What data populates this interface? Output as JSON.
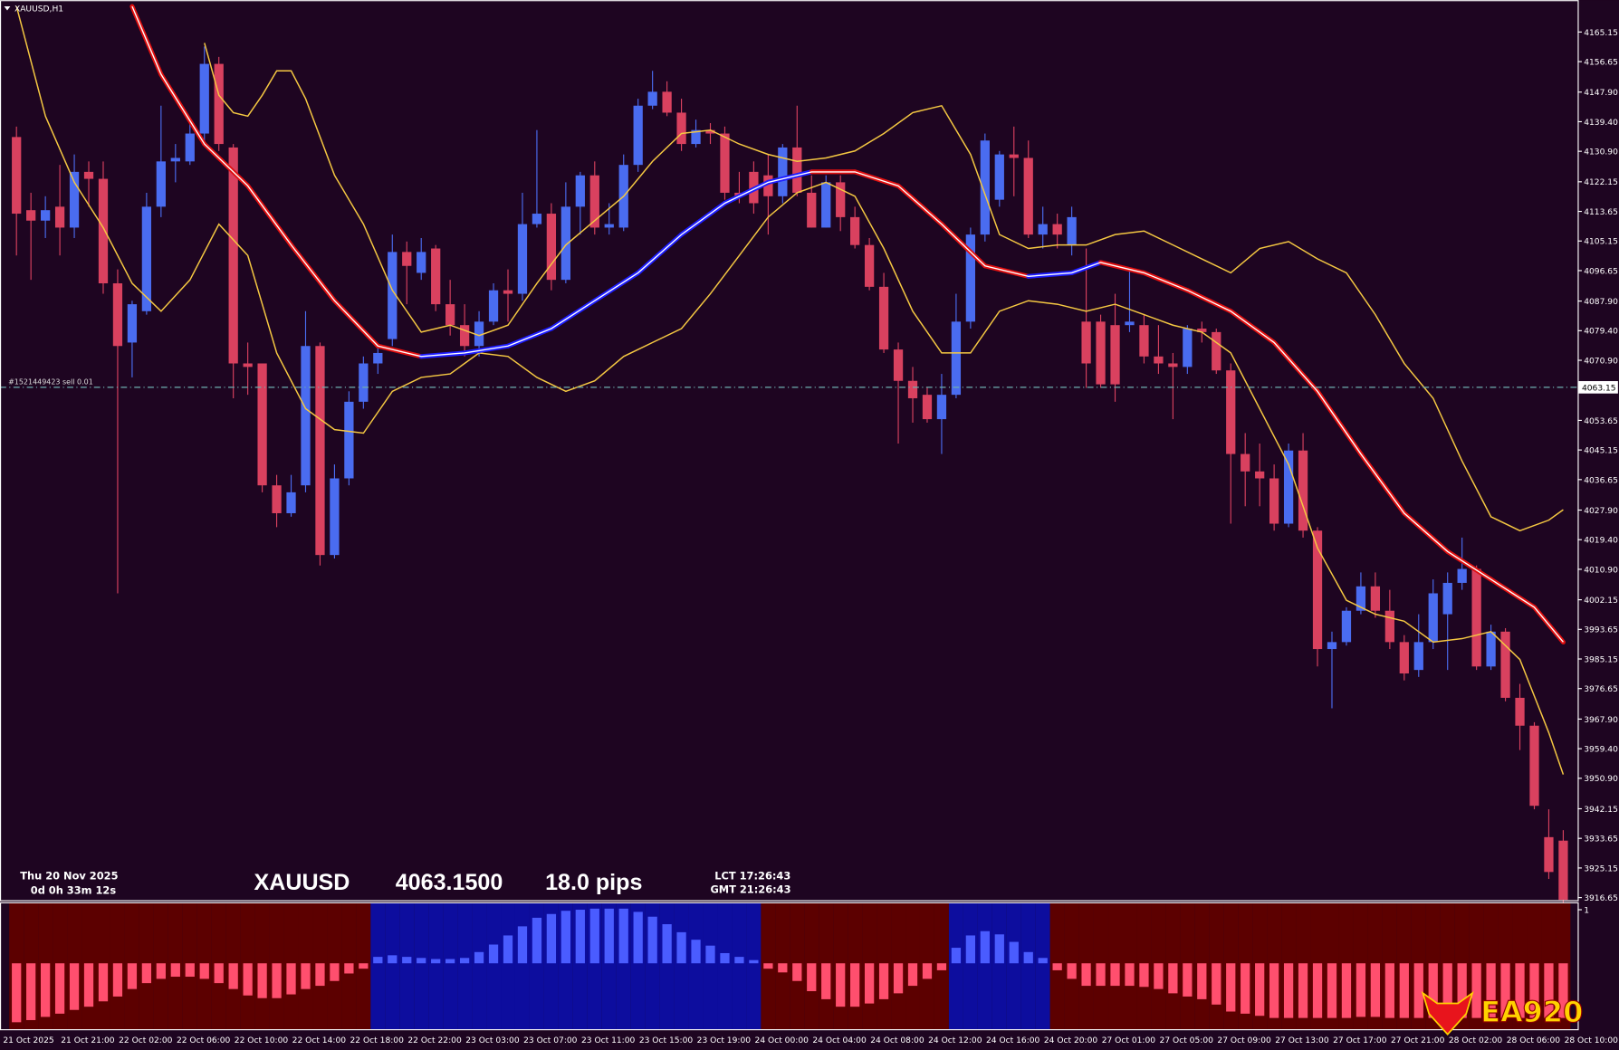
{
  "header": {
    "title": "XAUUSD,H1"
  },
  "info": {
    "date": "Thu 20 Nov 2025",
    "countdown": "0d 0h 33m 12s",
    "symbol": "XAUUSD",
    "price": "4063.1500",
    "spread": "18.0 pips",
    "lct": "LCT 17:26:43",
    "gmt": "GMT 21:26:43"
  },
  "order_label": "#1521449423 sell 0.01",
  "logo": {
    "text": "EA920"
  },
  "chart_data": [
    {
      "type": "candlestick",
      "up_color": "#4a6cf0",
      "down_color": "#d9415f",
      "xlim": [
        -1.14,
        108
      ],
      "ylim": [
        3915.9,
        4174.3
      ],
      "yticks": [
        4165.15,
        4156.65,
        {
          "value": 4147.9,
          "label": "4147.90"
        },
        {
          "value": 4139.4,
          "label": "4139.40"
        },
        {
          "value": 4130.9,
          "label": "4130.90"
        },
        4122.15,
        4113.65,
        4105.15,
        4096.65,
        {
          "value": 4087.9,
          "label": "4087.90"
        },
        {
          "value": 4079.4,
          "label": "4079.40"
        },
        {
          "value": 4070.9,
          "label": "4070.90"
        },
        4053.65,
        4045.15,
        4036.65,
        {
          "value": 4027.9,
          "label": "4027.90"
        },
        {
          "value": 4019.4,
          "label": "4019.40"
        },
        {
          "value": 4010.9,
          "label": "4010.90"
        },
        4002.15,
        3993.65,
        3985.15,
        3976.65,
        {
          "value": 3967.9,
          "label": "3967.90"
        },
        {
          "value": 3959.4,
          "label": "3959.40"
        },
        {
          "value": 3950.9,
          "label": "3950.90"
        },
        3942.15,
        3933.65,
        3925.15,
        3916.65
      ],
      "current_price": 4063.15,
      "x_labels": [
        "21 Oct 2025",
        "21 Oct 21:00",
        "22 Oct 02:00",
        "22 Oct 06:00",
        "22 Oct 10:00",
        "22 Oct 14:00",
        "22 Oct 18:00",
        "22 Oct 22:00",
        "23 Oct 03:00",
        "23 Oct 07:00",
        "23 Oct 11:00",
        "23 Oct 15:00",
        "23 Oct 19:00",
        "24 Oct 00:00",
        "24 Oct 04:00",
        "24 Oct 08:00",
        "24 Oct 12:00",
        "24 Oct 16:00",
        "24 Oct 20:00",
        "27 Oct 01:00",
        "27 Oct 05:00",
        "27 Oct 09:00",
        "27 Oct 13:00",
        "27 Oct 17:00",
        "27 Oct 21:00",
        "28 Oct 02:00",
        "28 Oct 06:00",
        "28 Oct 10:00"
      ],
      "open": [
        4135,
        4114,
        4111,
        4115,
        4109,
        4125,
        4123,
        4093,
        4076,
        4085,
        4115,
        4128,
        4128,
        4136,
        4156,
        4132,
        4070,
        4070,
        4035,
        4027,
        4035,
        4075,
        4015,
        4037,
        4059,
        4070,
        4077,
        4102,
        4096,
        4103,
        4087,
        4081,
        4075,
        4082,
        4091,
        4090,
        4110,
        4113,
        4094,
        4115,
        4124,
        4109,
        4109,
        4127,
        4144,
        4148,
        4142,
        4133,
        4137,
        4136,
        4119,
        4125,
        4124,
        4118,
        4132,
        4119,
        4109,
        4122,
        4112,
        4104,
        4092,
        4074,
        4065,
        4061,
        4054,
        4061,
        4082,
        4107,
        4117,
        4130,
        4129,
        4107,
        4110,
        4104,
        4082,
        4082,
        4081,
        4081,
        4081,
        4072,
        4070,
        4069,
        4080,
        4079,
        4068,
        4044,
        4039,
        4037,
        4024,
        4045,
        4022,
        3988,
        3990,
        3999,
        4006,
        3999,
        3990,
        3982,
        3990,
        3998,
        4007,
        4011,
        3983,
        3993,
        3974,
        3966,
        3934,
        3933
      ],
      "high": [
        4138,
        4119,
        4118,
        4127,
        4130,
        4128,
        4128,
        4097,
        4088,
        4119,
        4144,
        4133,
        4140,
        4161,
        4158,
        4133,
        4076,
        4070,
        4038,
        4038,
        4085,
        4076,
        4041,
        4062,
        4072,
        4075,
        4107,
        4105,
        4106,
        4104,
        4094,
        4087,
        4085,
        4093,
        4097,
        4119,
        4137,
        4116,
        4122,
        4125,
        4128,
        4116,
        4130,
        4146,
        4154,
        4151,
        4146,
        4140,
        4139,
        4138,
        4125,
        4128,
        4130,
        4133,
        4144,
        4124,
        4124,
        4124,
        4115,
        4106,
        4096,
        4076,
        4069,
        4063,
        4067,
        4090,
        4109,
        4136,
        4131,
        4138,
        4134,
        4115,
        4113,
        4115,
        4103,
        4084,
        4090,
        4097,
        4084,
        4081,
        4073,
        4081,
        4082,
        4080,
        4070,
        4050,
        4047,
        4041,
        4047,
        4050,
        4023,
        3993,
        4000,
        4010,
        4010,
        4005,
        3992,
        3998,
        4008,
        4010,
        4020,
        4012,
        3995,
        3994,
        3978,
        3967,
        3942,
        3936
      ],
      "low": [
        4101,
        4094,
        4106,
        4101,
        4106,
        4115,
        4090,
        4004,
        4066,
        4084,
        4112,
        4122,
        4127,
        4134,
        4131,
        4060,
        4061,
        4033,
        4023,
        4026,
        4033,
        4012,
        4014,
        4035,
        4057,
        4067,
        4075,
        4087,
        4094,
        4085,
        4078,
        4072,
        4072,
        4081,
        4082,
        4088,
        4109,
        4091,
        4093,
        4107,
        4107,
        4107,
        4108,
        4125,
        4143,
        4141,
        4131,
        4132,
        4133,
        4117,
        4116,
        4113,
        4107,
        4116,
        4118,
        4109,
        4109,
        4108,
        4103,
        4091,
        4073,
        4047,
        4053,
        4053,
        4044,
        4060,
        4080,
        4105,
        4115,
        4118,
        4106,
        4103,
        4103,
        4101,
        4063,
        4063,
        4059,
        4079,
        4070,
        4067,
        4054,
        4067,
        4076,
        4067,
        4024,
        4029,
        4029,
        4022,
        4023,
        4020,
        3983,
        3971,
        3989,
        3998,
        3997,
        3988,
        3979,
        3980,
        3988,
        3982,
        4005,
        3982,
        3982,
        3973,
        3959,
        3942,
        3922,
        3915
      ],
      "close": [
        4113,
        4111,
        4114,
        4109,
        4125,
        4123,
        4093,
        4075,
        4087,
        4115,
        4128,
        4129,
        4136,
        4156,
        4133,
        4070,
        4069,
        4035,
        4027,
        4033,
        4075,
        4015,
        4037,
        4059,
        4070,
        4073,
        4102,
        4098,
        4102,
        4087,
        4081,
        4075,
        4082,
        4091,
        4090,
        4110,
        4113,
        4094,
        4115,
        4124,
        4109,
        4110,
        4127,
        4144,
        4148,
        4142,
        4133,
        4137,
        4136,
        4119,
        4118,
        4116,
        4118,
        4132,
        4119,
        4109,
        4122,
        4112,
        4104,
        4092,
        4074,
        4065,
        4060,
        4054,
        4061,
        4082,
        4107,
        4134,
        4130,
        4129,
        4107,
        4110,
        4107,
        4112,
        4070,
        4064,
        4064,
        4082,
        4072,
        4070,
        4069,
        4080,
        4079,
        4068,
        4044,
        4039,
        4037,
        4024,
        4045,
        4022,
        3988,
        3990,
        3999,
        4006,
        3999,
        3990,
        3981,
        3990,
        4004,
        4007,
        4011,
        3983,
        3993,
        3974,
        3966,
        3943,
        3924,
        3916
      ],
      "overlays": [
        {
          "type": "line",
          "color": "#f5c842",
          "x": [
            13,
            14,
            15,
            16,
            17,
            18,
            19,
            20,
            22,
            24,
            26,
            28,
            30,
            32,
            34,
            36,
            38,
            40,
            42,
            44,
            46,
            48,
            50,
            52,
            54,
            56,
            58,
            60,
            62,
            64,
            66,
            68,
            70,
            72,
            74,
            76,
            78,
            80,
            82,
            84,
            86,
            88,
            90,
            92,
            94,
            96,
            98,
            100,
            102,
            104,
            106,
            107
          ],
          "values": [
            4162,
            4147,
            4142,
            4141,
            4147,
            4154,
            4154,
            4146,
            4124,
            4110,
            4091,
            4079,
            4081,
            4078,
            4081,
            4093,
            4104,
            4111,
            4118,
            4128,
            4136,
            4137,
            4133,
            4130,
            4128,
            4129,
            4131,
            4136,
            4142,
            4144,
            4130,
            4107,
            4103,
            4104,
            4104,
            4107,
            4108,
            4104,
            4100,
            4096,
            4103,
            4105,
            4100,
            4096,
            4084,
            4070,
            4060,
            4042,
            4026,
            4022,
            4025,
            4028
          ]
        },
        {
          "type": "line",
          "color": "#f5c842",
          "x": [
            0,
            2,
            4,
            6,
            8,
            10,
            12,
            14,
            16,
            18,
            20,
            22,
            24,
            26,
            28,
            30,
            32,
            34,
            36,
            38,
            40,
            42,
            44,
            46,
            48,
            50,
            52,
            54,
            56,
            58,
            60,
            62,
            64,
            66,
            68,
            70,
            72,
            74,
            76,
            78,
            80,
            82,
            84,
            86,
            88,
            90,
            92,
            94,
            96,
            98,
            100,
            102,
            104,
            106,
            107
          ],
          "values": [
            4172.5,
            4141,
            4122,
            4109,
            4093,
            4085,
            4094,
            4110,
            4101,
            4073,
            4057,
            4051,
            4050,
            4062,
            4066,
            4067,
            4073,
            4072,
            4066,
            4062,
            4065,
            4072,
            4076,
            4080,
            4090,
            4101,
            4112,
            4119,
            4122,
            4118,
            4103,
            4085,
            4073,
            4073,
            4085,
            4088,
            4087,
            4085,
            4087,
            4084,
            4081,
            4079,
            4073,
            4057,
            4041,
            4017,
            4002,
            3998,
            3996,
            3990,
            3991,
            3993,
            3985,
            3964,
            3952
          ]
        },
        {
          "type": "trend-line",
          "up_color": "#1d1dff",
          "down_color": "#e01010",
          "x": [
            8,
            10,
            13,
            16,
            19,
            22,
            25,
            28,
            31,
            34,
            37,
            40,
            43,
            46,
            49,
            52,
            55,
            58,
            61,
            64,
            67,
            70,
            73,
            75,
            78,
            81,
            84,
            87,
            90,
            93,
            96,
            99,
            102,
            105,
            107
          ],
          "values": [
            4172.5,
            4153,
            4133,
            4121,
            4104,
            4088,
            4075,
            4072,
            4073,
            4075,
            4080,
            4088,
            4096,
            4107,
            4116,
            4122,
            4125,
            4125,
            4121,
            4110,
            4098,
            4095,
            4096,
            4099,
            4096,
            4091,
            4085,
            4076,
            4062,
            4044,
            4027,
            4016,
            4008,
            4000,
            3990
          ]
        }
      ]
    },
    {
      "type": "bar",
      "up_color": "#4a5cff",
      "down_color": "#ff4f6e",
      "up_background": "#0d0d9e",
      "down_background": "#5c0000",
      "xlim": [
        -1.14,
        108
      ],
      "ylim": [
        -1.23,
        1.12
      ],
      "yticks": [
        1
      ],
      "values": [
        -1.1,
        -1.06,
        -1.0,
        -0.94,
        -0.87,
        -0.81,
        -0.71,
        -0.62,
        -0.48,
        -0.37,
        -0.29,
        -0.25,
        -0.25,
        -0.29,
        -0.37,
        -0.48,
        -0.6,
        -0.65,
        -0.65,
        -0.58,
        -0.48,
        -0.42,
        -0.33,
        -0.19,
        -0.1,
        0.12,
        0.15,
        0.12,
        0.1,
        0.08,
        0.08,
        0.1,
        0.21,
        0.35,
        0.52,
        0.69,
        0.85,
        0.92,
        0.98,
        1.0,
        1.02,
        1.02,
        1.02,
        0.96,
        0.87,
        0.73,
        0.58,
        0.44,
        0.33,
        0.19,
        0.12,
        0.06,
        -0.1,
        -0.17,
        -0.33,
        -0.52,
        -0.67,
        -0.81,
        -0.81,
        -0.75,
        -0.67,
        -0.56,
        -0.42,
        -0.29,
        -0.13,
        0.29,
        0.52,
        0.6,
        0.54,
        0.4,
        0.21,
        0.1,
        -0.13,
        -0.29,
        -0.42,
        -0.42,
        -0.42,
        -0.42,
        -0.44,
        -0.48,
        -0.56,
        -0.62,
        -0.67,
        -0.77,
        -0.9,
        -0.94,
        -0.98,
        -1.02,
        -1.02,
        -1.02,
        -1.02,
        -1.02,
        -1.02,
        -1.0,
        -1.0,
        -1.02,
        -1.02,
        -1.02,
        -1.02,
        -1.02,
        -1.02,
        -1.02,
        -1.02,
        -1.02,
        -1.02,
        -1.02,
        -1.02,
        -1.02
      ]
    }
  ]
}
